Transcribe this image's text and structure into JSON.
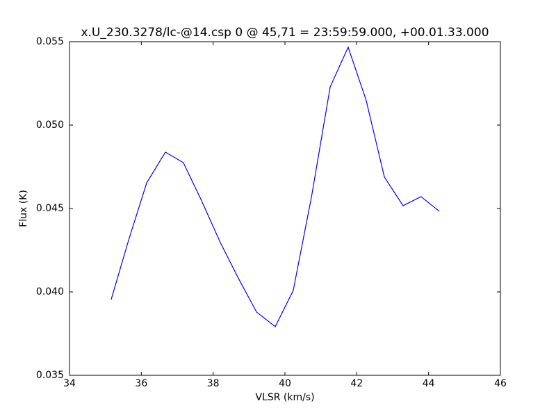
{
  "chart_data": {
    "type": "line",
    "title": "x.U_230.3278/lc-@14.csp 0 @ 45,71 = 23:59:59.000, +00.01.33.000",
    "x_label": "VLSR (km/s)",
    "y_label": "Flux (K)",
    "x": [
      35.16,
      35.65,
      36.15,
      36.67,
      37.17,
      37.68,
      38.2,
      38.7,
      39.21,
      39.73,
      40.23,
      40.74,
      41.26,
      41.76,
      42.26,
      42.77,
      43.29,
      43.79,
      44.3
    ],
    "values": [
      0.03954,
      0.04313,
      0.04654,
      0.04838,
      0.04775,
      0.04546,
      0.04296,
      0.04083,
      0.03879,
      0.03792,
      0.04008,
      0.04571,
      0.05229,
      0.05467,
      0.0515,
      0.04688,
      0.04517,
      0.04571,
      0.04483
    ],
    "color": "#0000ff",
    "xlim": [
      34,
      46
    ],
    "xticks": [
      34,
      36,
      38,
      40,
      42,
      44,
      46
    ],
    "ylim": [
      0.035,
      0.055
    ],
    "yticks": [
      0.035,
      {
        "value": 0.04,
        "label": "0.040"
      },
      0.045,
      {
        "value": 0.05,
        "label": "0.050"
      },
      0.055
    ],
    "grid": false
  }
}
